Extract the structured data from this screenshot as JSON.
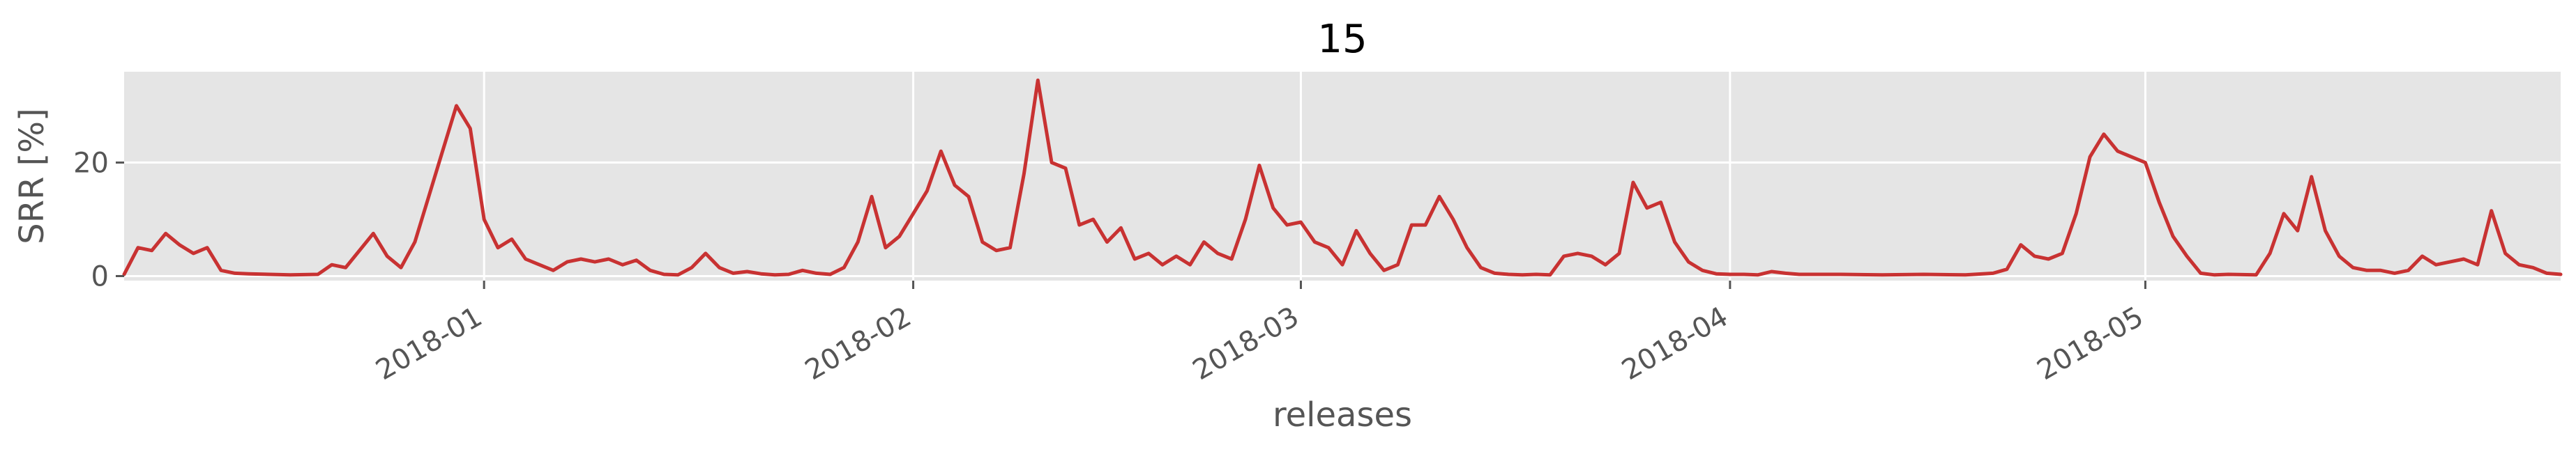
{
  "chart_data": {
    "type": "line",
    "title": "15",
    "xlabel": "releases",
    "ylabel": "SRR [%]",
    "xlim": [
      "2017-12-06",
      "2018-05-31"
    ],
    "ylim": [
      -0.8,
      36
    ],
    "y_ticks": [
      0,
      20
    ],
    "x_ticks": [
      "2018-01",
      "2018-02",
      "2018-03",
      "2018-04",
      "2018-05"
    ],
    "grid": true,
    "background": "#e5e5e5",
    "line_color": "#c83232",
    "series": [
      {
        "points": [
          [
            "2017-12-06",
            0.3
          ],
          [
            "2017-12-07",
            5.0
          ],
          [
            "2017-12-08",
            4.5
          ],
          [
            "2017-12-09",
            7.5
          ],
          [
            "2017-12-10",
            5.5
          ],
          [
            "2017-12-11",
            4.0
          ],
          [
            "2017-12-12",
            5.0
          ],
          [
            "2017-12-13",
            1.0
          ],
          [
            "2017-12-14",
            0.5
          ],
          [
            "2017-12-15",
            0.4
          ],
          [
            "2017-12-18",
            0.2
          ],
          [
            "2017-12-20",
            0.3
          ],
          [
            "2017-12-21",
            2.0
          ],
          [
            "2017-12-22",
            1.5
          ],
          [
            "2017-12-24",
            7.5
          ],
          [
            "2017-12-25",
            3.5
          ],
          [
            "2017-12-26",
            1.5
          ],
          [
            "2017-12-27",
            6.0
          ],
          [
            "2017-12-28",
            14.0
          ],
          [
            "2017-12-29",
            22.0
          ],
          [
            "2017-12-30",
            30.0
          ],
          [
            "2017-12-31",
            26.0
          ],
          [
            "2018-01-01",
            10.0
          ],
          [
            "2018-01-02",
            5.0
          ],
          [
            "2018-01-03",
            6.5
          ],
          [
            "2018-01-04",
            3.0
          ],
          [
            "2018-01-05",
            2.0
          ],
          [
            "2018-01-06",
            1.0
          ],
          [
            "2018-01-07",
            2.5
          ],
          [
            "2018-01-08",
            3.0
          ],
          [
            "2018-01-09",
            2.5
          ],
          [
            "2018-01-10",
            3.0
          ],
          [
            "2018-01-11",
            2.0
          ],
          [
            "2018-01-12",
            2.8
          ],
          [
            "2018-01-13",
            1.0
          ],
          [
            "2018-01-14",
            0.3
          ],
          [
            "2018-01-15",
            0.2
          ],
          [
            "2018-01-16",
            1.5
          ],
          [
            "2018-01-17",
            4.0
          ],
          [
            "2018-01-18",
            1.5
          ],
          [
            "2018-01-19",
            0.5
          ],
          [
            "2018-01-20",
            0.8
          ],
          [
            "2018-01-21",
            0.4
          ],
          [
            "2018-01-22",
            0.2
          ],
          [
            "2018-01-23",
            0.3
          ],
          [
            "2018-01-24",
            1.0
          ],
          [
            "2018-01-25",
            0.5
          ],
          [
            "2018-01-26",
            0.3
          ],
          [
            "2018-01-27",
            1.5
          ],
          [
            "2018-01-28",
            6.0
          ],
          [
            "2018-01-29",
            14.0
          ],
          [
            "2018-01-30",
            5.0
          ],
          [
            "2018-01-31",
            7.0
          ],
          [
            "2018-02-01",
            11.0
          ],
          [
            "2018-02-02",
            15.0
          ],
          [
            "2018-02-03",
            22.0
          ],
          [
            "2018-02-04",
            16.0
          ],
          [
            "2018-02-05",
            14.0
          ],
          [
            "2018-02-06",
            6.0
          ],
          [
            "2018-02-07",
            4.5
          ],
          [
            "2018-02-08",
            5.0
          ],
          [
            "2018-02-09",
            18.0
          ],
          [
            "2018-02-10",
            34.5
          ],
          [
            "2018-02-11",
            20.0
          ],
          [
            "2018-02-12",
            19.0
          ],
          [
            "2018-02-13",
            9.0
          ],
          [
            "2018-02-14",
            10.0
          ],
          [
            "2018-02-15",
            6.0
          ],
          [
            "2018-02-16",
            8.5
          ],
          [
            "2018-02-17",
            3.0
          ],
          [
            "2018-02-18",
            4.0
          ],
          [
            "2018-02-19",
            2.0
          ],
          [
            "2018-02-20",
            3.5
          ],
          [
            "2018-02-21",
            2.0
          ],
          [
            "2018-02-22",
            6.0
          ],
          [
            "2018-02-23",
            4.0
          ],
          [
            "2018-02-24",
            3.0
          ],
          [
            "2018-02-25",
            10.0
          ],
          [
            "2018-02-26",
            19.5
          ],
          [
            "2018-02-27",
            12.0
          ],
          [
            "2018-02-28",
            9.0
          ],
          [
            "2018-03-01",
            9.5
          ],
          [
            "2018-03-02",
            6.0
          ],
          [
            "2018-03-03",
            5.0
          ],
          [
            "2018-03-04",
            2.0
          ],
          [
            "2018-03-05",
            8.0
          ],
          [
            "2018-03-06",
            4.0
          ],
          [
            "2018-03-07",
            1.0
          ],
          [
            "2018-03-08",
            2.0
          ],
          [
            "2018-03-09",
            9.0
          ],
          [
            "2018-03-10",
            9.0
          ],
          [
            "2018-03-11",
            14.0
          ],
          [
            "2018-03-12",
            10.0
          ],
          [
            "2018-03-13",
            5.0
          ],
          [
            "2018-03-14",
            1.5
          ],
          [
            "2018-03-15",
            0.5
          ],
          [
            "2018-03-16",
            0.3
          ],
          [
            "2018-03-17",
            0.2
          ],
          [
            "2018-03-18",
            0.3
          ],
          [
            "2018-03-19",
            0.2
          ],
          [
            "2018-03-20",
            3.5
          ],
          [
            "2018-03-21",
            4.0
          ],
          [
            "2018-03-22",
            3.5
          ],
          [
            "2018-03-23",
            2.0
          ],
          [
            "2018-03-24",
            4.0
          ],
          [
            "2018-03-25",
            16.5
          ],
          [
            "2018-03-26",
            12.0
          ],
          [
            "2018-03-27",
            13.0
          ],
          [
            "2018-03-28",
            6.0
          ],
          [
            "2018-03-29",
            2.5
          ],
          [
            "2018-03-30",
            1.0
          ],
          [
            "2018-03-31",
            0.4
          ],
          [
            "2018-04-01",
            0.3
          ],
          [
            "2018-04-02",
            0.3
          ],
          [
            "2018-04-03",
            0.2
          ],
          [
            "2018-04-04",
            0.8
          ],
          [
            "2018-04-05",
            0.5
          ],
          [
            "2018-04-06",
            0.3
          ],
          [
            "2018-04-09",
            0.3
          ],
          [
            "2018-04-12",
            0.2
          ],
          [
            "2018-04-15",
            0.3
          ],
          [
            "2018-04-18",
            0.2
          ],
          [
            "2018-04-20",
            0.5
          ],
          [
            "2018-04-21",
            1.2
          ],
          [
            "2018-04-22",
            5.5
          ],
          [
            "2018-04-23",
            3.5
          ],
          [
            "2018-04-24",
            3.0
          ],
          [
            "2018-04-25",
            4.0
          ],
          [
            "2018-04-26",
            11.0
          ],
          [
            "2018-04-27",
            21.0
          ],
          [
            "2018-04-28",
            25.0
          ],
          [
            "2018-04-29",
            22.0
          ],
          [
            "2018-04-30",
            21.0
          ],
          [
            "2018-05-01",
            20.0
          ],
          [
            "2018-05-02",
            13.0
          ],
          [
            "2018-05-03",
            7.0
          ],
          [
            "2018-05-04",
            3.5
          ],
          [
            "2018-05-05",
            0.5
          ],
          [
            "2018-05-06",
            0.2
          ],
          [
            "2018-05-07",
            0.3
          ],
          [
            "2018-05-09",
            0.2
          ],
          [
            "2018-05-10",
            4.0
          ],
          [
            "2018-05-11",
            11.0
          ],
          [
            "2018-05-12",
            8.0
          ],
          [
            "2018-05-13",
            17.5
          ],
          [
            "2018-05-14",
            8.0
          ],
          [
            "2018-05-15",
            3.5
          ],
          [
            "2018-05-16",
            1.5
          ],
          [
            "2018-05-17",
            1.0
          ],
          [
            "2018-05-18",
            1.0
          ],
          [
            "2018-05-19",
            0.5
          ],
          [
            "2018-05-20",
            1.0
          ],
          [
            "2018-05-21",
            3.5
          ],
          [
            "2018-05-22",
            2.0
          ],
          [
            "2018-05-23",
            2.5
          ],
          [
            "2018-05-24",
            3.0
          ],
          [
            "2018-05-25",
            2.0
          ],
          [
            "2018-05-26",
            11.5
          ],
          [
            "2018-05-27",
            4.0
          ],
          [
            "2018-05-28",
            2.0
          ],
          [
            "2018-05-29",
            1.5
          ],
          [
            "2018-05-30",
            0.5
          ],
          [
            "2018-05-31",
            0.3
          ]
        ]
      }
    ]
  }
}
